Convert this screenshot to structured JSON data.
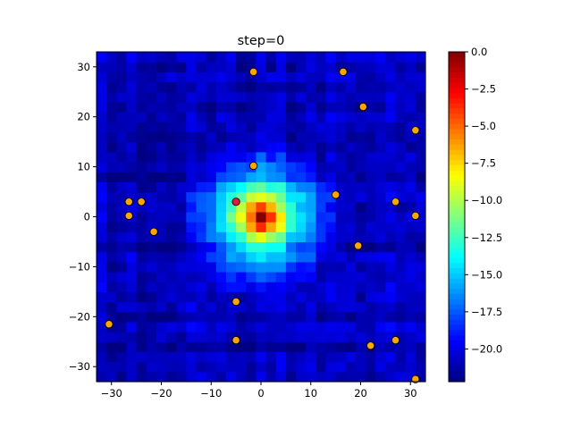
{
  "chart_data": {
    "type": "heatmap",
    "title": "step=0",
    "xlabel": "",
    "ylabel": "",
    "xlim": [
      -33,
      33
    ],
    "ylim": [
      -33,
      33
    ],
    "grid": false,
    "x_ticks": [
      -30,
      -20,
      -10,
      0,
      10,
      20,
      30
    ],
    "y_ticks": [
      -30,
      -20,
      -10,
      0,
      10,
      20,
      30
    ],
    "colorbar": {
      "colormap": "jet",
      "vmin": -22.2,
      "vmax": 0,
      "ticks": [
        0.0,
        -2.5,
        -5.0,
        -7.5,
        -10.0,
        -12.5,
        -15.0,
        -17.5,
        -20.0
      ]
    },
    "heatmap": {
      "x_range": [
        -33,
        33
      ],
      "y_range": [
        -33,
        33
      ],
      "cells_per_side": 33,
      "peak": [
        0,
        0
      ],
      "peak_value": 0,
      "background_value": -21
    },
    "scatter": {
      "marker_color": "#FFA500",
      "marker_edge": "#000000",
      "highlight_color": "#E8173A",
      "points": [
        [
          -1.5,
          29
        ],
        [
          16.5,
          29
        ],
        [
          20.5,
          22
        ],
        [
          31,
          17.3
        ],
        [
          -1.5,
          10.2
        ],
        [
          15,
          4.4
        ],
        [
          27,
          3
        ],
        [
          31,
          0.2
        ],
        [
          -5,
          3
        ],
        [
          -26.5,
          3
        ],
        [
          -24,
          3
        ],
        [
          -26.5,
          0.2
        ],
        [
          -21.5,
          -3
        ],
        [
          19.5,
          -5.8
        ],
        [
          -5,
          -17
        ],
        [
          -30.5,
          -21.5
        ],
        [
          -5,
          -24.7
        ],
        [
          27,
          -24.7
        ],
        [
          22,
          -25.8
        ],
        [
          31,
          -32.5
        ]
      ],
      "highlight_points": [
        [
          -5,
          3
        ]
      ]
    }
  }
}
